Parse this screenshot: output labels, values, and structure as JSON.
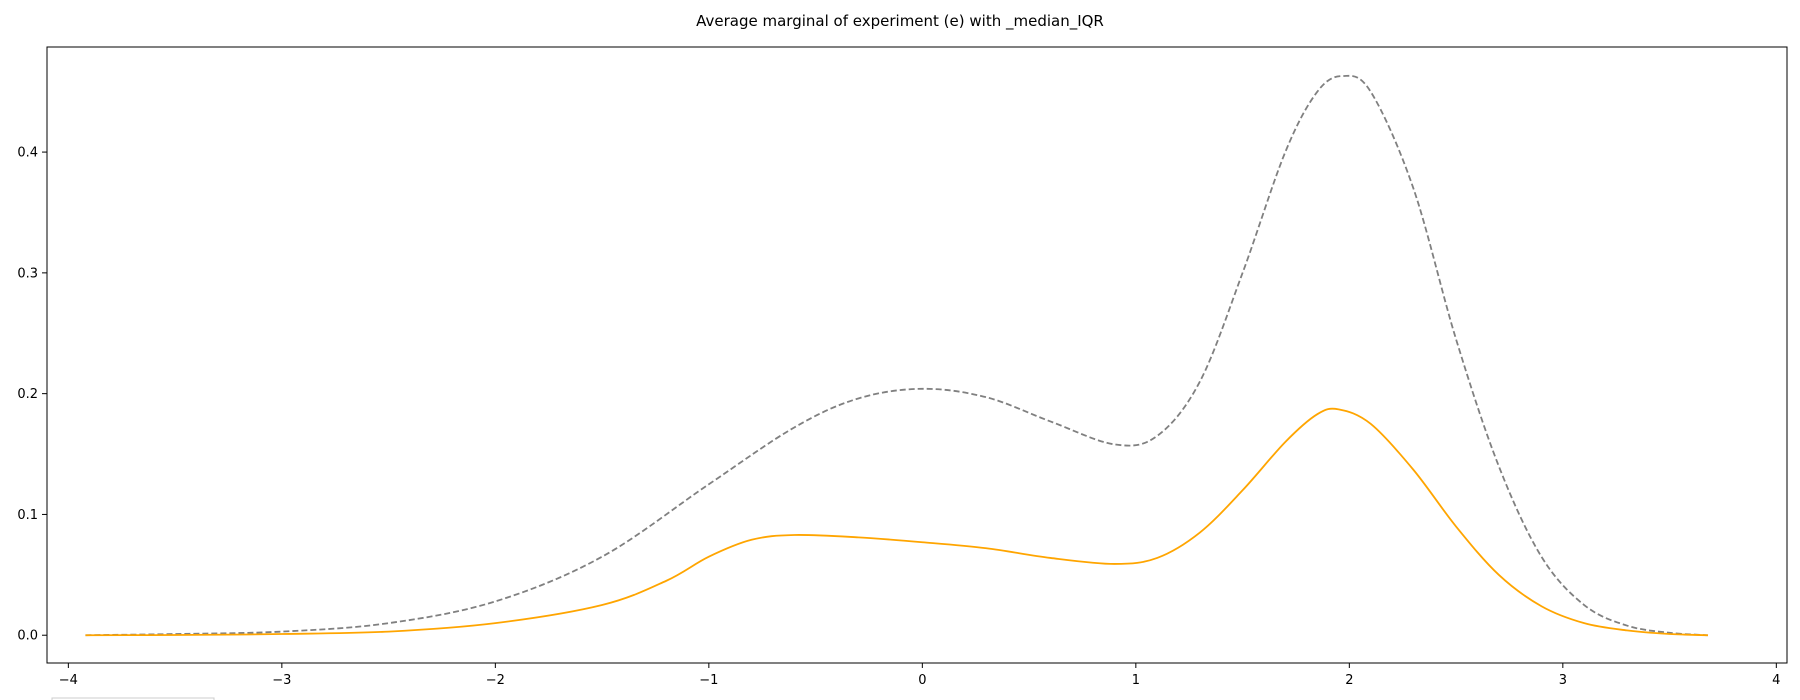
{
  "chart_data": {
    "type": "line",
    "title": "Average marginal of experiment (e) with _median_IQR",
    "xlabel": "",
    "ylabel": "",
    "xlim": [
      -4.1,
      4.05
    ],
    "ylim": [
      -0.023,
      0.487
    ],
    "xticks": [
      -4,
      -3,
      -2,
      -1,
      0,
      1,
      2,
      3,
      4
    ],
    "xtick_labels": [
      "−4",
      "−3",
      "−2",
      "−1",
      "0",
      "1",
      "2",
      "3",
      "4"
    ],
    "yticks": [
      0.0,
      0.1,
      0.2,
      0.3,
      0.4
    ],
    "ytick_labels": [
      "0.0",
      "0.1",
      "0.2",
      "0.3",
      "0.4"
    ],
    "grid": false,
    "series": [
      {
        "color": "#808080",
        "style": "dashed",
        "x": [
          -3.92,
          -3.5,
          -3.0,
          -2.5,
          -2.0,
          -1.5,
          -1.0,
          -0.6,
          -0.3,
          0.0,
          0.3,
          0.6,
          0.9,
          1.1,
          1.3,
          1.5,
          1.7,
          1.85,
          1.97,
          2.1,
          2.3,
          2.5,
          2.7,
          2.9,
          3.1,
          3.3,
          3.5,
          3.68
        ],
        "y": [
          0.0,
          0.001,
          0.003,
          0.01,
          0.028,
          0.065,
          0.125,
          0.172,
          0.196,
          0.204,
          0.197,
          0.177,
          0.158,
          0.165,
          0.21,
          0.3,
          0.4,
          0.45,
          0.463,
          0.45,
          0.37,
          0.245,
          0.14,
          0.065,
          0.025,
          0.008,
          0.002,
          0.0
        ]
      },
      {
        "color": "#ffa500",
        "style": "solid",
        "x": [
          -3.92,
          -3.5,
          -3.0,
          -2.5,
          -2.0,
          -1.5,
          -1.2,
          -1.0,
          -0.8,
          -0.6,
          -0.3,
          0.0,
          0.3,
          0.6,
          0.9,
          1.1,
          1.3,
          1.5,
          1.7,
          1.85,
          1.95,
          2.1,
          2.3,
          2.5,
          2.7,
          2.9,
          3.1,
          3.3,
          3.5,
          3.68
        ],
        "y": [
          0.0,
          0.0002,
          0.001,
          0.003,
          0.01,
          0.025,
          0.045,
          0.065,
          0.079,
          0.083,
          0.081,
          0.077,
          0.072,
          0.064,
          0.059,
          0.064,
          0.085,
          0.12,
          0.16,
          0.183,
          0.187,
          0.175,
          0.137,
          0.09,
          0.05,
          0.024,
          0.01,
          0.004,
          0.001,
          0.0
        ]
      }
    ]
  }
}
